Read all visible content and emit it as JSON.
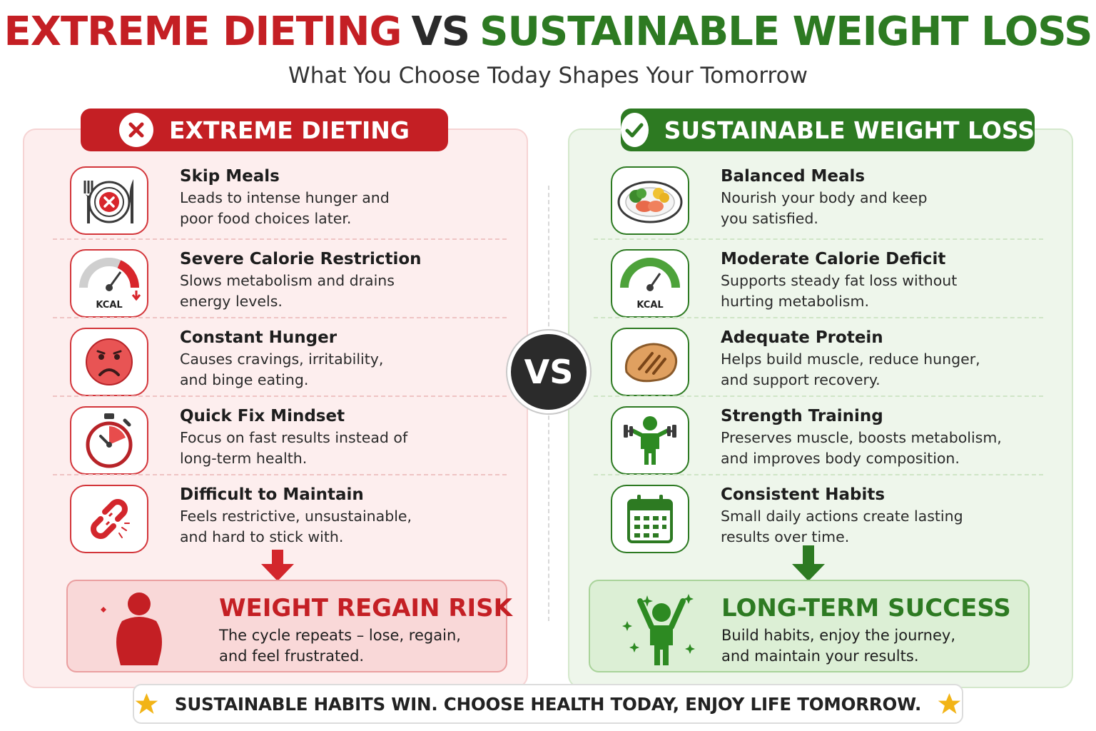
{
  "title": {
    "left": "EXTREME DIETING",
    "vs": "VS",
    "right": "SUSTAINABLE WEIGHT LOSS"
  },
  "subtitle": "What You Choose Today Shapes Your Tomorrow",
  "left_panel": {
    "header": "EXTREME DIETING",
    "header_icon": "x-icon",
    "accent_color": "#c41f24",
    "items": [
      {
        "title": "Skip Meals",
        "line1": "Leads to intense hunger and",
        "line2": "poor food choices later.",
        "icon": "empty-plate-icon"
      },
      {
        "title": "Severe Calorie Restriction",
        "line1": "Slows metabolism and drains",
        "line2": "energy levels.",
        "icon": "kcal-gauge-icon",
        "icon_label": "KCAL"
      },
      {
        "title": "Constant Hunger",
        "line1": "Causes cravings, irritability,",
        "line2": "and binge eating.",
        "icon": "sad-face-icon"
      },
      {
        "title": "Quick Fix Mindset",
        "line1": "Focus on fast results instead of",
        "line2": "long-term health.",
        "icon": "stopwatch-icon"
      },
      {
        "title": "Difficult to Maintain",
        "line1": "Feels restrictive, unsustainable,",
        "line2": "and hard to stick with.",
        "icon": "broken-chain-icon"
      }
    ],
    "result": {
      "title": "WEIGHT REGAIN RISK",
      "line1": "The cycle repeats – lose, regain,",
      "line2": "and feel frustrated.",
      "icon": "overweight-person-icon"
    }
  },
  "vs_badge": "VS",
  "right_panel": {
    "header": "SUSTAINABLE WEIGHT LOSS",
    "header_icon": "check-icon",
    "accent_color": "#2d7a22",
    "items": [
      {
        "title": "Balanced Meals",
        "line1": "Nourish your body and keep",
        "line2": "you satisfied.",
        "icon": "balanced-plate-icon"
      },
      {
        "title": "Moderate Calorie Deficit",
        "line1": "Supports steady fat loss without",
        "line2": "hurting metabolism.",
        "icon": "kcal-gauge-icon",
        "icon_label": "KCAL"
      },
      {
        "title": "Adequate Protein",
        "line1": "Helps build muscle, reduce hunger,",
        "line2": "and support recovery.",
        "icon": "steak-icon"
      },
      {
        "title": "Strength Training",
        "line1": "Preserves muscle, boosts metabolism,",
        "line2": "and improves body composition.",
        "icon": "dumbbell-person-icon"
      },
      {
        "title": "Consistent Habits",
        "line1": "Small daily actions create lasting",
        "line2": "results over time.",
        "icon": "calendar-icon"
      }
    ],
    "result": {
      "title": "LONG-TERM SUCCESS",
      "line1": "Build habits, enjoy the journey,",
      "line2": "and maintain your results.",
      "icon": "celebrating-person-icon"
    }
  },
  "footer": {
    "text": "SUSTAINABLE HABITS WIN. CHOOSE HEALTH TODAY, ENJOY LIFE TOMORROW.",
    "icon": "star-icon",
    "star_color": "#f2b417"
  }
}
